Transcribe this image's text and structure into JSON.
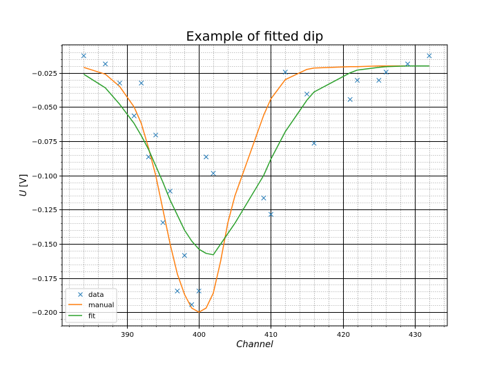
{
  "chart_data": {
    "type": "line",
    "title": "Example of fitted dip",
    "xlabel": "Channel",
    "ylabel_main": "U",
    "ylabel_unit": "[V]",
    "xlim": [
      381,
      434.5
    ],
    "ylim": [
      -0.21,
      -0.0045
    ],
    "xticks": [
      390,
      400,
      410,
      420,
      430
    ],
    "xtick_labels": [
      "390",
      "400",
      "410",
      "420",
      "430"
    ],
    "yticks": [
      -0.025,
      -0.05,
      -0.075,
      -0.1,
      -0.125,
      -0.15,
      -0.175,
      -0.2
    ],
    "ytick_labels": [
      "−0.025",
      "−0.050",
      "−0.075",
      "−0.100",
      "−0.125",
      "−0.150",
      "−0.175",
      "−0.200"
    ],
    "grid": {
      "major": true,
      "minor": true
    },
    "legend_position": "lower-left",
    "series": [
      {
        "name": "data",
        "kind": "scatter",
        "marker": "x",
        "color": "#1f77b4",
        "points": [
          [
            384,
            -0.0125
          ],
          [
            387,
            -0.0185
          ],
          [
            389,
            -0.0325
          ],
          [
            391,
            -0.0565
          ],
          [
            392,
            -0.0325
          ],
          [
            393,
            -0.0865
          ],
          [
            394,
            -0.0705
          ],
          [
            395,
            -0.1345
          ],
          [
            396,
            -0.1115
          ],
          [
            397,
            -0.1845
          ],
          [
            398,
            -0.1585
          ],
          [
            399,
            -0.1945
          ],
          [
            400,
            -0.1845
          ],
          [
            401,
            -0.0865
          ],
          [
            402,
            -0.0985
          ],
          [
            409,
            -0.1165
          ],
          [
            410,
            -0.1285
          ],
          [
            412,
            -0.0245
          ],
          [
            415,
            -0.0405
          ],
          [
            416,
            -0.0765
          ],
          [
            421,
            -0.0445
          ],
          [
            422,
            -0.0305
          ],
          [
            425,
            -0.0305
          ],
          [
            426,
            -0.0245
          ],
          [
            429,
            -0.0185
          ],
          [
            432,
            -0.0125
          ]
        ]
      },
      {
        "name": "manual",
        "kind": "line",
        "color": "#ff7f0e",
        "points": [
          [
            384,
            -0.021
          ],
          [
            387,
            -0.026
          ],
          [
            389,
            -0.035
          ],
          [
            391,
            -0.05
          ],
          [
            392,
            -0.062
          ],
          [
            393,
            -0.08
          ],
          [
            394,
            -0.1
          ],
          [
            395,
            -0.125
          ],
          [
            396,
            -0.15
          ],
          [
            397,
            -0.172
          ],
          [
            398,
            -0.187
          ],
          [
            399,
            -0.197
          ],
          [
            400,
            -0.2
          ],
          [
            401,
            -0.197
          ],
          [
            402,
            -0.186
          ],
          [
            403,
            -0.163
          ],
          [
            404,
            -0.135
          ],
          [
            405,
            -0.115
          ],
          [
            409,
            -0.056
          ],
          [
            410,
            -0.044
          ],
          [
            412,
            -0.03
          ],
          [
            415,
            -0.0225
          ],
          [
            416,
            -0.0215
          ],
          [
            421,
            -0.0205
          ],
          [
            422,
            -0.0205
          ],
          [
            425,
            -0.02
          ],
          [
            426,
            -0.02
          ],
          [
            429,
            -0.02
          ],
          [
            432,
            -0.02
          ]
        ]
      },
      {
        "name": "fit",
        "kind": "line",
        "color": "#2ca02c",
        "points": [
          [
            384,
            -0.026
          ],
          [
            387,
            -0.036
          ],
          [
            389,
            -0.048
          ],
          [
            391,
            -0.062
          ],
          [
            392,
            -0.071
          ],
          [
            393,
            -0.081
          ],
          [
            394,
            -0.093
          ],
          [
            395,
            -0.105
          ],
          [
            396,
            -0.118
          ],
          [
            397,
            -0.129
          ],
          [
            398,
            -0.14
          ],
          [
            399,
            -0.148
          ],
          [
            400,
            -0.154
          ],
          [
            401,
            -0.157
          ],
          [
            402,
            -0.158
          ],
          [
            405,
            -0.135
          ],
          [
            409,
            -0.1
          ],
          [
            410,
            -0.088
          ],
          [
            412,
            -0.068
          ],
          [
            415,
            -0.045
          ],
          [
            416,
            -0.039
          ],
          [
            421,
            -0.025
          ],
          [
            422,
            -0.023
          ],
          [
            425,
            -0.021
          ],
          [
            426,
            -0.0205
          ],
          [
            429,
            -0.02
          ],
          [
            432,
            -0.02
          ]
        ]
      }
    ]
  }
}
